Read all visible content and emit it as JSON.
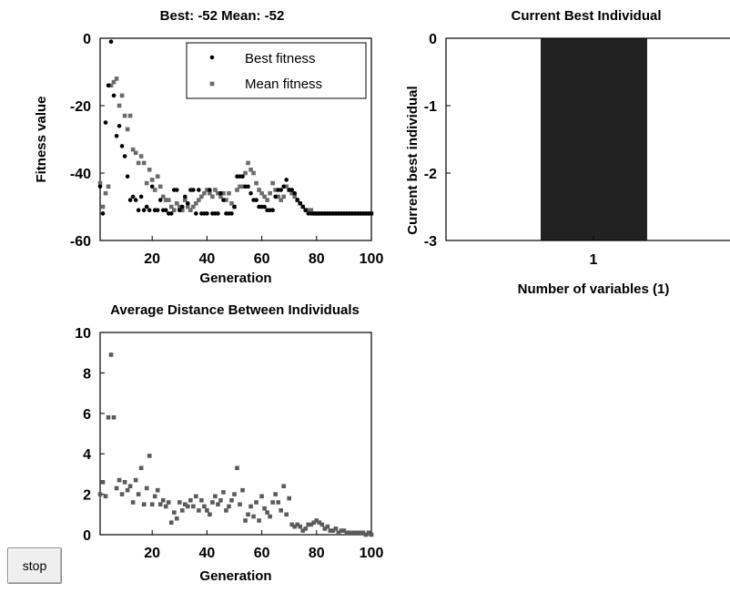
{
  "chart_data": [
    {
      "type": "scatter",
      "title": "Best: -52 Mean: -52",
      "xlabel": "Generation",
      "ylabel": "Fitness value",
      "xlim": [
        1,
        100
      ],
      "ylim": [
        -60,
        0
      ],
      "xticks": [
        "20",
        "40",
        "60",
        "80",
        "100"
      ],
      "yticks": [
        "0",
        "-20",
        "-40",
        "-60"
      ],
      "legend_position": "top-right",
      "series": [
        {
          "name": "Best fitness",
          "color": "#000000",
          "x": [
            1,
            2,
            3,
            4,
            5,
            6,
            7,
            8,
            9,
            10,
            11,
            12,
            13,
            14,
            15,
            16,
            17,
            18,
            19,
            20,
            21,
            22,
            23,
            24,
            25,
            26,
            27,
            28,
            29,
            30,
            31,
            32,
            33,
            34,
            35,
            36,
            37,
            38,
            39,
            40,
            41,
            42,
            43,
            44,
            45,
            46,
            47,
            48,
            49,
            50,
            51,
            52,
            53,
            54,
            55,
            56,
            57,
            58,
            59,
            60,
            61,
            62,
            63,
            64,
            65,
            66,
            67,
            68,
            69,
            70,
            71,
            72,
            73,
            74,
            75,
            76,
            77,
            78,
            79,
            80,
            81,
            82,
            83,
            84,
            85,
            86,
            87,
            88,
            89,
            90,
            91,
            92,
            93,
            94,
            95,
            96,
            97,
            98,
            99,
            100
          ],
          "y": [
            -44,
            -52,
            -25,
            -14,
            -1,
            -17,
            -29,
            -26,
            -32,
            -35,
            -41,
            -48,
            -47,
            -48,
            -51,
            -47,
            -51,
            -50,
            -51,
            -44,
            -51,
            -51,
            -48,
            -51,
            -51,
            -52,
            -52,
            -45,
            -45,
            -51,
            -50,
            -47,
            -49,
            -45,
            -45,
            -52,
            -45,
            -52,
            -52,
            -52,
            -45,
            -52,
            -52,
            -52,
            -46,
            -48,
            -52,
            -52,
            -52,
            -50,
            -41,
            -41,
            -41,
            -44,
            -44,
            -46,
            -48,
            -48,
            -50,
            -50,
            -50,
            -51,
            -51,
            -51,
            -47,
            -45,
            -45,
            -44,
            -42,
            -45,
            -45,
            -46,
            -48,
            -49,
            -50,
            -51,
            -52,
            -52,
            -52,
            -52,
            -52,
            -52,
            -52,
            -52,
            -52,
            -52,
            -52,
            -52,
            -52,
            -52,
            -52,
            -52,
            -52,
            -52,
            -52,
            -52,
            -52,
            -52,
            -52,
            -52
          ]
        },
        {
          "name": "Mean fitness",
          "color": "#6b6b6b",
          "x": [
            1,
            2,
            3,
            4,
            5,
            6,
            7,
            8,
            9,
            10,
            11,
            12,
            13,
            14,
            15,
            16,
            17,
            18,
            19,
            20,
            21,
            22,
            23,
            24,
            25,
            26,
            27,
            28,
            29,
            30,
            31,
            32,
            33,
            34,
            35,
            36,
            37,
            38,
            39,
            40,
            41,
            42,
            43,
            44,
            45,
            46,
            47,
            48,
            49,
            50,
            51,
            52,
            53,
            54,
            55,
            56,
            57,
            58,
            59,
            60,
            61,
            62,
            63,
            64,
            65,
            66,
            67,
            68,
            69,
            70,
            71,
            72,
            73,
            74,
            75,
            76,
            77,
            78,
            79,
            80,
            81,
            82,
            83,
            84,
            85,
            86,
            87,
            88,
            89,
            90,
            91,
            92,
            93,
            94,
            95,
            96,
            97,
            98,
            99,
            100
          ],
          "y": [
            -43,
            -50,
            -46,
            -44,
            -14,
            -13,
            -12,
            -20,
            -17,
            -23,
            -27,
            -23,
            -33,
            -34,
            -37,
            -35,
            -37,
            -43,
            -39,
            -42,
            -45,
            -41,
            -44,
            -47,
            -48,
            -48,
            -50,
            -51,
            -49,
            -50,
            -51,
            -48,
            -50,
            -51,
            -50,
            -49,
            -48,
            -47,
            -46,
            -45,
            -46,
            -47,
            -45,
            -46,
            -47,
            -46,
            -48,
            -46,
            -49,
            -50,
            -45,
            -44,
            -44,
            -40,
            -37,
            -39,
            -40,
            -43,
            -45,
            -46,
            -47,
            -48,
            -46,
            -43,
            -45,
            -47,
            -48,
            -47,
            -44,
            -45,
            -46,
            -47,
            -48,
            -49,
            -50,
            -51,
            -51,
            -51,
            -52,
            -52,
            -52,
            -52,
            -52,
            -52,
            -52,
            -52,
            -52,
            -52,
            -52,
            -52,
            -52,
            -52,
            -52,
            -52,
            -52,
            -52,
            -52,
            -52,
            -52,
            -52
          ]
        }
      ]
    },
    {
      "type": "bar",
      "title": "Current Best Individual",
      "xlabel": "Number of variables (1)",
      "ylabel": "Current best individual",
      "categories": [
        "1"
      ],
      "values": [
        -3
      ],
      "ylim": [
        -3,
        0
      ],
      "yticks": [
        "0",
        "-1",
        "-2",
        "-3"
      ],
      "bar_color": "#222222"
    },
    {
      "type": "scatter",
      "title": "Average Distance Between Individuals",
      "xlabel": "Generation",
      "ylabel": "",
      "xlim": [
        1,
        100
      ],
      "ylim": [
        0,
        10
      ],
      "xticks": [
        "20",
        "40",
        "60",
        "80",
        "100"
      ],
      "yticks": [
        "10",
        "8",
        "6",
        "4",
        "2",
        "0"
      ],
      "series": [
        {
          "color": "#5a5a5a",
          "x": [
            1,
            2,
            3,
            4,
            5,
            6,
            7,
            8,
            9,
            10,
            11,
            12,
            13,
            14,
            15,
            16,
            17,
            18,
            19,
            20,
            21,
            22,
            23,
            24,
            25,
            26,
            27,
            28,
            29,
            30,
            31,
            32,
            33,
            34,
            35,
            36,
            37,
            38,
            39,
            40,
            41,
            42,
            43,
            44,
            45,
            46,
            47,
            48,
            49,
            50,
            51,
            52,
            53,
            54,
            55,
            56,
            57,
            58,
            59,
            60,
            61,
            62,
            63,
            64,
            65,
            66,
            67,
            68,
            69,
            70,
            71,
            72,
            73,
            74,
            75,
            76,
            77,
            78,
            79,
            80,
            81,
            82,
            83,
            84,
            85,
            86,
            87,
            88,
            89,
            90,
            91,
            92,
            93,
            94,
            95,
            96,
            97,
            98,
            99,
            100
          ],
          "y": [
            2.0,
            2.6,
            1.9,
            5.8,
            8.9,
            5.8,
            2.3,
            2.7,
            2.0,
            2.6,
            2.2,
            2.4,
            1.6,
            2.7,
            2.0,
            3.3,
            1.5,
            2.3,
            3.9,
            1.5,
            1.9,
            2.2,
            1.5,
            1.7,
            1.4,
            1.6,
            0.6,
            1.1,
            0.8,
            1.6,
            1.2,
            1.5,
            1.4,
            1.7,
            1.4,
            1.9,
            1.2,
            1.7,
            1.4,
            1.2,
            1.0,
            1.6,
            1.9,
            1.5,
            1.7,
            2.1,
            1.2,
            1.4,
            1.7,
            2.0,
            3.3,
            1.5,
            2.2,
            0.7,
            1.0,
            1.4,
            0.9,
            1.6,
            0.7,
            1.9,
            1.3,
            1.1,
            0.9,
            1.6,
            2.0,
            1.6,
            1.2,
            2.4,
            1.0,
            1.8,
            0.5,
            0.4,
            0.5,
            0.4,
            0.2,
            0.3,
            0.5,
            0.5,
            0.6,
            0.7,
            0.6,
            0.5,
            0.3,
            0.4,
            0.2,
            0.2,
            0.3,
            0.1,
            0.2,
            0.2,
            0.1,
            0.1,
            0.1,
            0.1,
            0.1,
            0.1,
            0.1,
            0.0,
            0.1,
            0.0
          ]
        }
      ]
    }
  ],
  "controls": {
    "stop_label": "stop"
  }
}
